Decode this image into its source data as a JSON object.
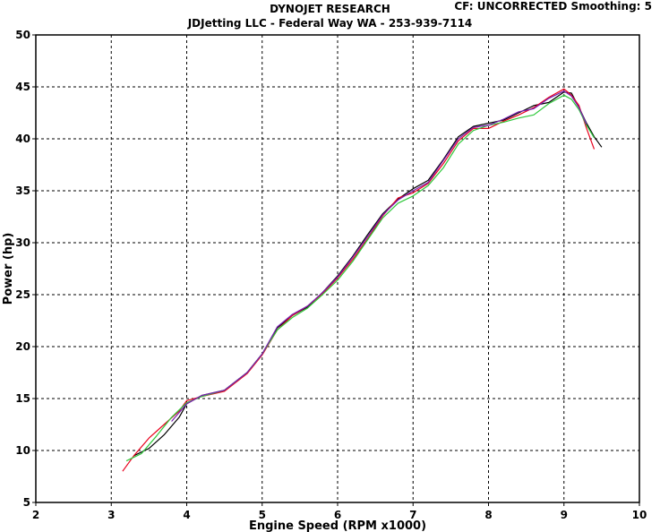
{
  "header": {
    "title": "DYNOJET RESEARCH",
    "subtitle": "JDJetting LLC  - Federal Way WA - 253-939-7114",
    "correction": "CF: UNCORRECTED  Smoothing: 5"
  },
  "chart_data": {
    "type": "line",
    "xlabel": "Engine Speed (RPM x1000)",
    "ylabel": "Power (hp)",
    "xlim": [
      2,
      10
    ],
    "ylim": [
      5,
      50
    ],
    "xticks": [
      2,
      3,
      4,
      5,
      6,
      7,
      8,
      9,
      10
    ],
    "yticks": [
      5,
      10,
      15,
      20,
      25,
      30,
      35,
      40,
      45,
      50
    ],
    "grid": true,
    "legend": "none",
    "series": [
      {
        "color": "#000000",
        "points": [
          [
            3.3,
            9.5
          ],
          [
            3.5,
            10.2
          ],
          [
            3.7,
            11.5
          ],
          [
            3.9,
            13.2
          ],
          [
            4.0,
            14.5
          ],
          [
            4.2,
            15.3
          ],
          [
            4.5,
            15.8
          ],
          [
            4.8,
            17.5
          ],
          [
            5.0,
            19.3
          ],
          [
            5.2,
            21.8
          ],
          [
            5.4,
            23.0
          ],
          [
            5.6,
            23.8
          ],
          [
            5.8,
            25.2
          ],
          [
            6.0,
            26.8
          ],
          [
            6.2,
            28.7
          ],
          [
            6.4,
            30.8
          ],
          [
            6.6,
            32.8
          ],
          [
            6.8,
            34.2
          ],
          [
            7.0,
            35.2
          ],
          [
            7.2,
            36.0
          ],
          [
            7.4,
            38.0
          ],
          [
            7.6,
            40.2
          ],
          [
            7.8,
            41.2
          ],
          [
            8.0,
            41.5
          ],
          [
            8.2,
            41.8
          ],
          [
            8.4,
            42.5
          ],
          [
            8.6,
            43.2
          ],
          [
            8.8,
            43.5
          ],
          [
            9.0,
            44.5
          ],
          [
            9.1,
            44.4
          ],
          [
            9.2,
            43.0
          ],
          [
            9.3,
            41.5
          ],
          [
            9.4,
            40.2
          ],
          [
            9.5,
            39.2
          ]
        ]
      },
      {
        "color": "#e8001c",
        "points": [
          [
            3.15,
            8.0
          ],
          [
            3.3,
            9.5
          ],
          [
            3.5,
            11.2
          ],
          [
            3.7,
            12.5
          ],
          [
            3.9,
            13.8
          ],
          [
            4.0,
            14.8
          ],
          [
            4.2,
            15.2
          ],
          [
            4.5,
            15.7
          ],
          [
            4.8,
            17.4
          ],
          [
            5.0,
            19.2
          ],
          [
            5.2,
            21.6
          ],
          [
            5.4,
            23.0
          ],
          [
            5.6,
            23.9
          ],
          [
            5.8,
            25.1
          ],
          [
            6.0,
            26.6
          ],
          [
            6.2,
            28.4
          ],
          [
            6.4,
            30.4
          ],
          [
            6.6,
            32.6
          ],
          [
            6.8,
            34.3
          ],
          [
            7.0,
            34.8
          ],
          [
            7.2,
            35.7
          ],
          [
            7.4,
            37.6
          ],
          [
            7.6,
            39.8
          ],
          [
            7.8,
            41.0
          ],
          [
            8.0,
            41.0
          ],
          [
            8.2,
            41.7
          ],
          [
            8.4,
            42.3
          ],
          [
            8.6,
            43.0
          ],
          [
            8.8,
            44.0
          ],
          [
            9.0,
            44.8
          ],
          [
            9.1,
            44.2
          ],
          [
            9.2,
            43.2
          ],
          [
            9.3,
            41.0
          ],
          [
            9.4,
            39.0
          ]
        ]
      },
      {
        "color": "#2ec83a",
        "points": [
          [
            3.2,
            9.0
          ],
          [
            3.4,
            9.7
          ],
          [
            3.6,
            11.4
          ],
          [
            3.8,
            13.2
          ],
          [
            4.0,
            14.6
          ],
          [
            4.2,
            15.2
          ],
          [
            4.5,
            15.8
          ],
          [
            4.8,
            17.5
          ],
          [
            5.0,
            19.3
          ],
          [
            5.2,
            21.6
          ],
          [
            5.4,
            22.8
          ],
          [
            5.6,
            23.7
          ],
          [
            5.8,
            25.0
          ],
          [
            6.0,
            26.4
          ],
          [
            6.2,
            28.2
          ],
          [
            6.4,
            30.3
          ],
          [
            6.6,
            32.4
          ],
          [
            6.8,
            33.8
          ],
          [
            7.0,
            34.5
          ],
          [
            7.2,
            35.5
          ],
          [
            7.4,
            37.2
          ],
          [
            7.6,
            39.5
          ],
          [
            7.8,
            40.8
          ],
          [
            8.0,
            41.3
          ],
          [
            8.2,
            41.6
          ],
          [
            8.4,
            42.0
          ],
          [
            8.6,
            42.3
          ],
          [
            8.8,
            43.4
          ],
          [
            9.0,
            44.2
          ],
          [
            9.1,
            43.8
          ],
          [
            9.2,
            42.8
          ],
          [
            9.3,
            41.3
          ],
          [
            9.4,
            40.1
          ]
        ]
      },
      {
        "color": "#7a1fb0",
        "points": [
          [
            3.8,
            12.8
          ],
          [
            4.0,
            14.5
          ],
          [
            4.2,
            15.3
          ],
          [
            4.5,
            15.8
          ],
          [
            4.8,
            17.5
          ],
          [
            5.0,
            19.3
          ],
          [
            5.2,
            21.9
          ],
          [
            5.4,
            23.1
          ],
          [
            5.6,
            23.9
          ],
          [
            5.8,
            25.2
          ],
          [
            6.0,
            26.7
          ],
          [
            6.2,
            28.6
          ],
          [
            6.4,
            30.6
          ],
          [
            6.6,
            32.7
          ],
          [
            6.8,
            34.1
          ],
          [
            7.0,
            35.0
          ],
          [
            7.2,
            35.8
          ],
          [
            7.4,
            37.9
          ],
          [
            7.6,
            40.0
          ],
          [
            7.8,
            41.1
          ],
          [
            8.0,
            41.3
          ],
          [
            8.2,
            41.9
          ],
          [
            8.4,
            42.6
          ],
          [
            8.6,
            42.9
          ],
          [
            8.8,
            43.9
          ],
          [
            9.0,
            44.6
          ],
          [
            9.1,
            44.1
          ],
          [
            9.2,
            43.0
          ],
          [
            9.3,
            41.4
          ]
        ]
      }
    ]
  }
}
